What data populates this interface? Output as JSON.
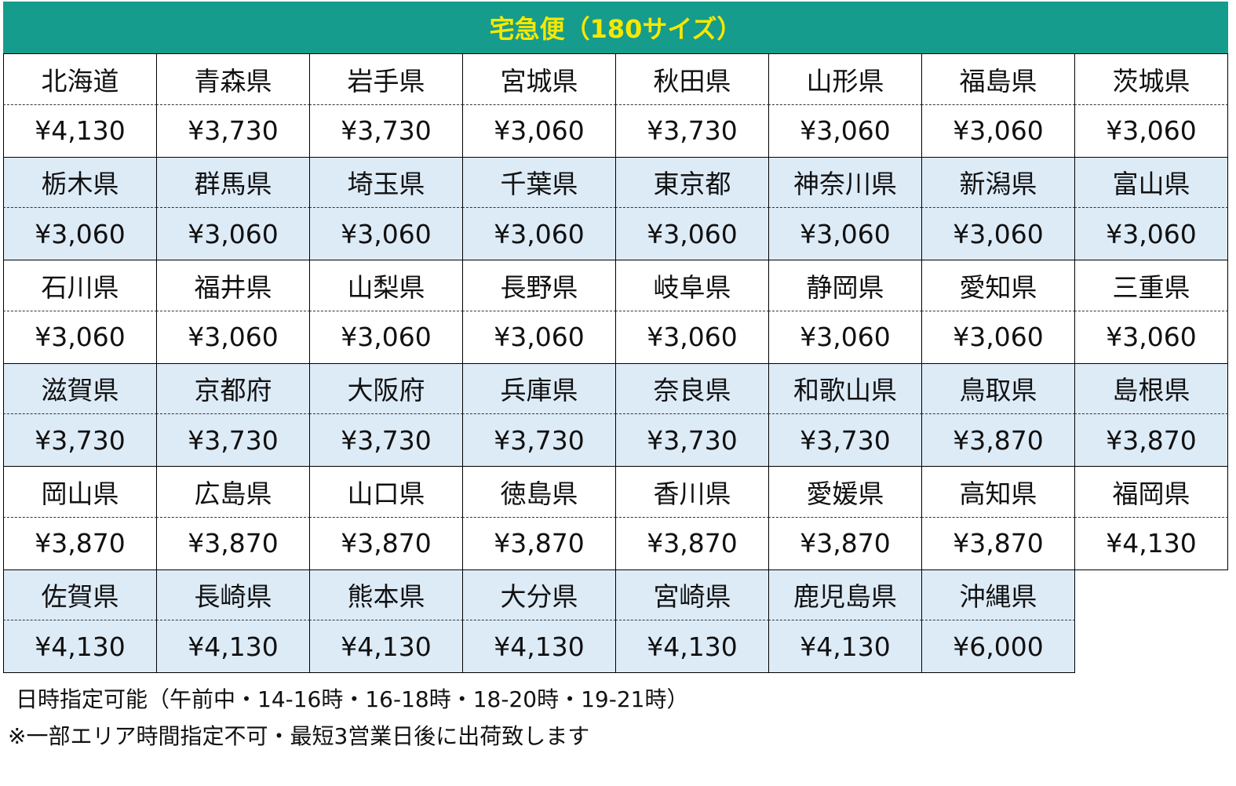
{
  "title": "宅急便（180サイズ）",
  "colors": {
    "header_bg": "#159c8c",
    "header_text": "#f5e800",
    "alt_row_bg": "#ddebf7"
  },
  "rates": [
    [
      [
        "北海道",
        "¥4,130"
      ],
      [
        "青森県",
        "¥3,730"
      ],
      [
        "岩手県",
        "¥3,730"
      ],
      [
        "宮城県",
        "¥3,060"
      ],
      [
        "秋田県",
        "¥3,730"
      ],
      [
        "山形県",
        "¥3,060"
      ],
      [
        "福島県",
        "¥3,060"
      ],
      [
        "茨城県",
        "¥3,060"
      ]
    ],
    [
      [
        "栃木県",
        "¥3,060"
      ],
      [
        "群馬県",
        "¥3,060"
      ],
      [
        "埼玉県",
        "¥3,060"
      ],
      [
        "千葉県",
        "¥3,060"
      ],
      [
        "東京都",
        "¥3,060"
      ],
      [
        "神奈川県",
        "¥3,060"
      ],
      [
        "新潟県",
        "¥3,060"
      ],
      [
        "富山県",
        "¥3,060"
      ]
    ],
    [
      [
        "石川県",
        "¥3,060"
      ],
      [
        "福井県",
        "¥3,060"
      ],
      [
        "山梨県",
        "¥3,060"
      ],
      [
        "長野県",
        "¥3,060"
      ],
      [
        "岐阜県",
        "¥3,060"
      ],
      [
        "静岡県",
        "¥3,060"
      ],
      [
        "愛知県",
        "¥3,060"
      ],
      [
        "三重県",
        "¥3,060"
      ]
    ],
    [
      [
        "滋賀県",
        "¥3,730"
      ],
      [
        "京都府",
        "¥3,730"
      ],
      [
        "大阪府",
        "¥3,730"
      ],
      [
        "兵庫県",
        "¥3,730"
      ],
      [
        "奈良県",
        "¥3,730"
      ],
      [
        "和歌山県",
        "¥3,730"
      ],
      [
        "鳥取県",
        "¥3,870"
      ],
      [
        "島根県",
        "¥3,870"
      ]
    ],
    [
      [
        "岡山県",
        "¥3,870"
      ],
      [
        "広島県",
        "¥3,870"
      ],
      [
        "山口県",
        "¥3,870"
      ],
      [
        "徳島県",
        "¥3,870"
      ],
      [
        "香川県",
        "¥3,870"
      ],
      [
        "愛媛県",
        "¥3,870"
      ],
      [
        "高知県",
        "¥3,870"
      ],
      [
        "福岡県",
        "¥4,130"
      ]
    ],
    [
      [
        "佐賀県",
        "¥4,130"
      ],
      [
        "長崎県",
        "¥4,130"
      ],
      [
        "熊本県",
        "¥4,130"
      ],
      [
        "大分県",
        "¥4,130"
      ],
      [
        "宮崎県",
        "¥4,130"
      ],
      [
        "鹿児島県",
        "¥4,130"
      ],
      [
        "沖縄県",
        "¥6,000"
      ]
    ]
  ],
  "notes": {
    "delivery_time": "日時指定可能（午前中・14-16時・16-18時・18-20時・19-21時）",
    "caution": "※一部エリア時間指定不可・最短3営業日後に出荷致します"
  }
}
